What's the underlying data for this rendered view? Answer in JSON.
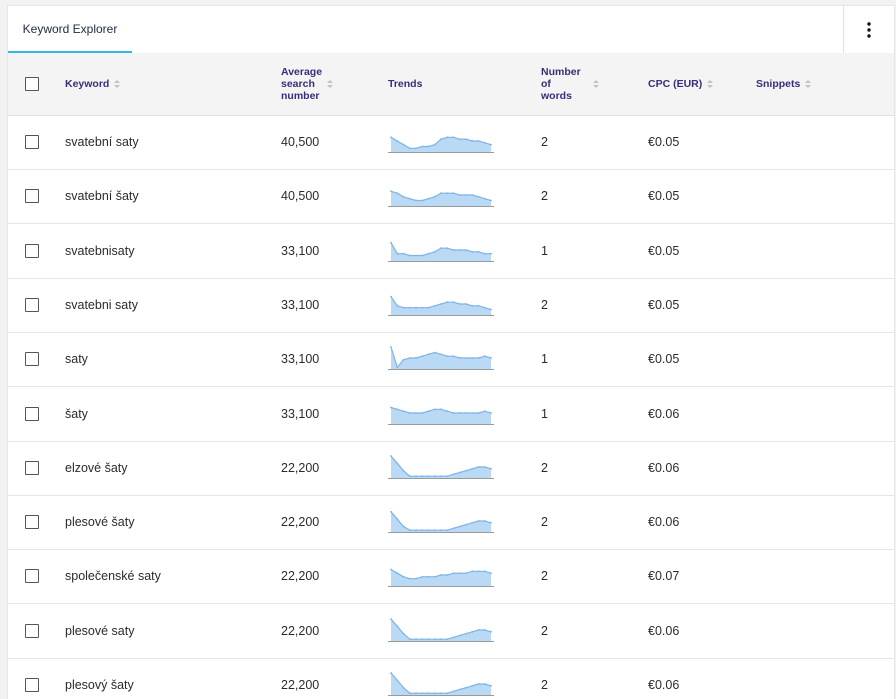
{
  "tab": {
    "label": "Keyword Explorer"
  },
  "more_menu": {
    "icon": "vertical-dots-icon"
  },
  "columns": {
    "keyword": "Keyword",
    "avg_line1": "Average",
    "avg_line2": "search",
    "avg_line3": "number",
    "trends": "Trends",
    "words_line1": "Number",
    "words_line2": "of",
    "words_line3": "words",
    "cpc": "CPC (EUR)",
    "snippets": "Snippets"
  },
  "colors": {
    "accent": "#35b6e6",
    "header_text": "#3c2b7a",
    "spark_fill": "#b9d9f5",
    "spark_line": "#7fb4e6"
  },
  "rows": [
    {
      "keyword": "svatební saty",
      "avg": "40,500",
      "words": "2",
      "cpc": "€0.05",
      "trend": [
        8,
        6,
        4,
        2,
        2,
        3,
        3,
        4,
        7,
        8,
        8,
        7,
        7,
        6,
        6,
        5,
        4
      ]
    },
    {
      "keyword": "svatební šaty",
      "avg": "40,500",
      "words": "2",
      "cpc": "€0.05",
      "trend": [
        8,
        7,
        5,
        4,
        3,
        3,
        4,
        5,
        7,
        7,
        7,
        6,
        6,
        6,
        5,
        4,
        3
      ]
    },
    {
      "keyword": "svatebnisaty",
      "avg": "33,100",
      "words": "1",
      "cpc": "€0.05",
      "trend": [
        10,
        4,
        4,
        3,
        3,
        3,
        4,
        5,
        7,
        7,
        6,
        6,
        6,
        5,
        5,
        4,
        4
      ]
    },
    {
      "keyword": "svatebni saty",
      "avg": "33,100",
      "words": "2",
      "cpc": "€0.05",
      "trend": [
        10,
        5,
        4,
        4,
        4,
        4,
        4,
        5,
        6,
        7,
        7,
        6,
        6,
        5,
        5,
        4,
        3
      ]
    },
    {
      "keyword": "saty",
      "avg": "33,100",
      "words": "1",
      "cpc": "€0.05",
      "trend": [
        12,
        1,
        5,
        6,
        6,
        7,
        8,
        9,
        8,
        7,
        7,
        6,
        6,
        6,
        6,
        7,
        6
      ]
    },
    {
      "keyword": "šaty",
      "avg": "33,100",
      "words": "1",
      "cpc": "€0.06",
      "trend": [
        9,
        8,
        7,
        6,
        6,
        6,
        7,
        8,
        8,
        7,
        6,
        6,
        6,
        6,
        6,
        7,
        6
      ]
    },
    {
      "keyword": "elzové šaty",
      "avg": "22,200",
      "words": "2",
      "cpc": "€0.06",
      "trend": [
        12,
        8,
        4,
        1,
        1,
        1,
        1,
        1,
        1,
        1,
        2,
        3,
        4,
        5,
        6,
        6,
        5
      ]
    },
    {
      "keyword": "plesové šaty",
      "avg": "22,200",
      "words": "2",
      "cpc": "€0.06",
      "trend": [
        11,
        7,
        3,
        1,
        1,
        1,
        1,
        1,
        1,
        1,
        2,
        3,
        4,
        5,
        6,
        6,
        5
      ]
    },
    {
      "keyword": "společenské saty",
      "avg": "22,200",
      "words": "2",
      "cpc": "€0.07",
      "trend": [
        9,
        7,
        5,
        4,
        4,
        5,
        5,
        5,
        6,
        6,
        7,
        7,
        7,
        8,
        8,
        8,
        7
      ]
    },
    {
      "keyword": "plesové saty",
      "avg": "22,200",
      "words": "2",
      "cpc": "€0.06",
      "trend": [
        12,
        8,
        4,
        1,
        1,
        1,
        1,
        1,
        1,
        1,
        2,
        3,
        4,
        5,
        6,
        6,
        5
      ]
    },
    {
      "keyword": "plesový šaty",
      "avg": "22,200",
      "words": "2",
      "cpc": "€0.06",
      "trend": [
        12,
        8,
        4,
        1,
        1,
        1,
        1,
        1,
        1,
        1,
        2,
        3,
        4,
        5,
        6,
        6,
        5
      ]
    }
  ]
}
